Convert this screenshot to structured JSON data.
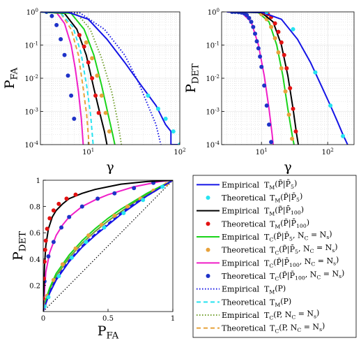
{
  "colors": {
    "tm_p5": "#1414e6",
    "tm_p5_theo": "#26e3f0",
    "tm_p100": "#000000",
    "tm_p100_theo": "#e31212",
    "tc_p5": "#19d419",
    "tc_p5_theo": "#e8a23a",
    "tc_p100": "#f01ec8",
    "tc_p100_theo": "#1e32c8",
    "tm_p": "#1414e6",
    "tm_p_theo": "#26e3f0",
    "tc_p": "#6f9e2a",
    "tc_p_theo": "#e8a23a",
    "diag": "#000000"
  },
  "legend": [
    {
      "method": "Empirical",
      "stat": "T_M(P~|P̄5)",
      "style": "solid",
      "color": "tm_p5"
    },
    {
      "method": "Theoretical",
      "stat": "T_M(P~|P̄5)",
      "style": "dot",
      "color": "tm_p5_theo"
    },
    {
      "method": "Empirical",
      "stat": "T_M(P~|P̄100)",
      "style": "solid",
      "color": "tm_p100"
    },
    {
      "method": "Theoretical",
      "stat": "T_M(P~|P̄100)",
      "style": "dot",
      "color": "tm_p100_theo"
    },
    {
      "method": "Empirical",
      "stat": "T_C(P~|P̄5, N_C = N_s)",
      "style": "solid",
      "color": "tc_p5"
    },
    {
      "method": "Theoretical",
      "stat": "T_C(P~|P̄5, N_C = N_s)",
      "style": "dot",
      "color": "tc_p5_theo"
    },
    {
      "method": "Empirical",
      "stat": "T_C(P~|P̄100, N_C = N_s)",
      "style": "solid",
      "color": "tc_p100"
    },
    {
      "method": "Theoretical",
      "stat": "T_C(P~|P̄100, N_C = N_s)",
      "style": "dot",
      "color": "tc_p100_theo"
    },
    {
      "method": "Empirical",
      "stat": "T_M(P)",
      "style": "dotted",
      "color": "tm_p"
    },
    {
      "method": "Theoretical",
      "stat": "T_M(P)",
      "style": "dashed",
      "color": "tm_p_theo"
    },
    {
      "method": "Empirical",
      "stat": "T_C(P, N_C = N_s)",
      "style": "dotted",
      "color": "tc_p"
    },
    {
      "method": "Theoretical",
      "stat": "T_C(P, N_C = N_s)",
      "style": "dashed",
      "color": "tc_p_theo"
    }
  ],
  "chart_data": [
    {
      "type": "line",
      "ylabel": "P_FA",
      "xlabel": "γ",
      "xscale": "log",
      "yscale": "log",
      "xlim": [
        3,
        100
      ],
      "ylim": [
        0.0001,
        1
      ],
      "xticks": [
        "10^1",
        "10^2"
      ],
      "yticks": [
        "10^-4",
        "10^-3",
        "10^-2",
        "10^-1",
        "10^0"
      ],
      "grid": true,
      "series": [
        {
          "id": "tc_p100",
          "style": "solid",
          "x": [
            3,
            4.5,
            5.5,
            6.5,
            7.2,
            7.8,
            8.4,
            8.8
          ],
          "y": [
            1,
            0.95,
            0.45,
            0.1,
            0.02,
            0.004,
            0.0006,
            0.0001
          ]
        },
        {
          "id": "tc_p100_theo",
          "style": "dot",
          "x": [
            3.5,
            4,
            4.5,
            5,
            5.5,
            6,
            6.5,
            7
          ],
          "y": [
            1,
            0.75,
            0.4,
            0.15,
            0.05,
            0.012,
            0.003,
            0.0006
          ]
        },
        {
          "id": "tc_p_theo",
          "style": "dashed",
          "x": [
            3,
            5,
            6.5,
            7.8,
            8.8,
            9.6,
            10.2
          ],
          "y": [
            1,
            0.9,
            0.3,
            0.05,
            0.005,
            0.0008,
            0.0001
          ]
        },
        {
          "id": "tm_p_theo",
          "style": "dashed",
          "x": [
            3,
            5,
            6.8,
            8.3,
            9.6,
            10.6,
            11.3
          ],
          "y": [
            1,
            0.92,
            0.35,
            0.06,
            0.006,
            0.0008,
            0.0001
          ]
        },
        {
          "id": "tm_p100",
          "style": "solid",
          "x": [
            3,
            5.5,
            7.5,
            9.5,
            11.5,
            13.5,
            15,
            16
          ],
          "y": [
            1,
            0.9,
            0.3,
            0.05,
            0.005,
            0.0008,
            0.00025,
            0.0001
          ]
        },
        {
          "id": "tm_p100_theo",
          "style": "dot",
          "x": [
            8,
            9,
            10,
            11,
            12,
            13
          ],
          "y": [
            0.2,
            0.09,
            0.03,
            0.01,
            0.003,
            0.0009
          ]
        },
        {
          "id": "tc_p5",
          "style": "solid",
          "x": [
            3,
            6.5,
            9,
            11.5,
            14,
            16.5,
            18.5,
            19.5
          ],
          "y": [
            1,
            0.9,
            0.3,
            0.05,
            0.006,
            0.0008,
            0.0002,
            0.0001
          ]
        },
        {
          "id": "tc_p5_theo",
          "style": "dot",
          "x": [
            9.5,
            11,
            12.5,
            14,
            15.5,
            17
          ],
          "y": [
            0.12,
            0.04,
            0.012,
            0.003,
            0.0009,
            0.00025
          ]
        },
        {
          "id": "tc_p",
          "style": "dotted",
          "x": [
            4,
            7.5,
            10.5,
            14,
            18,
            21,
            23
          ],
          "y": [
            1,
            0.9,
            0.3,
            0.04,
            0.004,
            0.0005,
            0.0001
          ]
        },
        {
          "id": "tm_p",
          "style": "dotted",
          "x": [
            3,
            8,
            15,
            25,
            35,
            45,
            55,
            62
          ],
          "y": [
            1,
            0.95,
            0.3,
            0.05,
            0.008,
            0.0015,
            0.0004,
            0.0001
          ]
        },
        {
          "id": "tm_p5",
          "style": "solid",
          "x": [
            3,
            6,
            10,
            16,
            25,
            38,
            55,
            70,
            80,
            80,
            100
          ],
          "y": [
            1,
            0.98,
            0.6,
            0.15,
            0.03,
            0.006,
            0.0015,
            0.0004,
            0.00025,
            0.0001,
            0.0001
          ]
        },
        {
          "id": "tm_p5_theo",
          "style": "dot",
          "x": [
            45,
            58,
            70,
            85,
            100
          ],
          "y": [
            0.003,
            0.0012,
            0.0006,
            0.00025,
            0.0001
          ]
        }
      ]
    },
    {
      "type": "line",
      "ylabel": "P_DET",
      "xlabel": "γ",
      "xscale": "log",
      "yscale": "log",
      "xlim": [
        2.5,
        250
      ],
      "ylim": [
        0.0001,
        1
      ],
      "xticks": [
        "10^1",
        "10^2"
      ],
      "yticks": [
        "10^-4",
        "10^-3",
        "10^-2",
        "10^-1",
        "10^0"
      ],
      "grid": true,
      "series": [
        {
          "id": "tc_p100",
          "style": "solid",
          "x": [
            3,
            5,
            7,
            9,
            11,
            13,
            14.5,
            15
          ],
          "y": [
            1,
            0.95,
            0.5,
            0.1,
            0.012,
            0.0012,
            0.0002,
            0.0001
          ]
        },
        {
          "id": "tc_p100_theo",
          "style": "dot",
          "x": [
            3.6,
            4,
            4.5,
            5,
            5.5,
            6,
            6.5,
            7,
            7.5,
            8,
            8.5,
            9,
            9.5,
            10,
            11,
            12,
            13,
            14
          ],
          "y": [
            1,
            1,
            0.98,
            0.95,
            0.9,
            0.8,
            0.65,
            0.5,
            0.35,
            0.22,
            0.13,
            0.08,
            0.045,
            0.022,
            0.006,
            0.0015,
            0.0004,
            0.00012
          ]
        },
        {
          "id": "tc_p5",
          "style": "solid",
          "x": [
            3,
            9,
            13,
            17,
            21,
            25,
            29,
            31
          ],
          "y": [
            1,
            0.95,
            0.5,
            0.1,
            0.012,
            0.0012,
            0.0002,
            0.0001
          ]
        },
        {
          "id": "tc_p5_theo",
          "style": "dot",
          "x": [
            10,
            12,
            14,
            16,
            18,
            20,
            23,
            26,
            29
          ],
          "y": [
            0.85,
            0.6,
            0.35,
            0.16,
            0.06,
            0.02,
            0.004,
            0.0008,
            0.00015
          ]
        },
        {
          "id": "tm_p100",
          "style": "solid",
          "x": [
            3,
            10,
            15,
            20,
            25,
            30,
            34,
            36
          ],
          "y": [
            1,
            0.95,
            0.5,
            0.1,
            0.012,
            0.0012,
            0.0002,
            0.0001
          ]
        },
        {
          "id": "tm_p100_theo",
          "style": "dot",
          "x": [
            11,
            12.5,
            14,
            16,
            18,
            20,
            22,
            24,
            27,
            30,
            33
          ],
          "y": [
            0.95,
            0.85,
            0.7,
            0.45,
            0.25,
            0.12,
            0.05,
            0.02,
            0.005,
            0.0012,
            0.00025
          ]
        },
        {
          "id": "tm_p5",
          "style": "solid",
          "x": [
            3,
            10,
            20,
            35,
            55,
            80,
            110,
            140,
            170,
            200
          ],
          "y": [
            1,
            0.98,
            0.6,
            0.15,
            0.03,
            0.006,
            0.0015,
            0.0005,
            0.0002,
            0.0001
          ]
        },
        {
          "id": "tm_p5_theo",
          "style": "dot",
          "x": [
            12,
            30,
            65,
            110,
            170
          ],
          "y": [
            1,
            0.3,
            0.015,
            0.0015,
            0.00018
          ]
        }
      ]
    },
    {
      "type": "line",
      "ylabel": "P_DET",
      "xlabel": "P_FA",
      "xlim": [
        0,
        1
      ],
      "ylim": [
        0,
        1
      ],
      "xticks": [
        "0",
        "0.5",
        "1"
      ],
      "yticks": [
        "0.2",
        "0.4",
        "0.6",
        "0.8",
        "1"
      ],
      "grid": false,
      "series": [
        {
          "id": "diag",
          "style": "dotted",
          "x": [
            0,
            1
          ],
          "y": [
            0,
            1
          ]
        },
        {
          "id": "tc_p",
          "style": "solid",
          "x": [
            0,
            0.02,
            0.05,
            0.1,
            0.2,
            0.3,
            0.4,
            0.5,
            0.6,
            0.7,
            0.8,
            0.9,
            1
          ],
          "y": [
            0,
            0.08,
            0.17,
            0.27,
            0.41,
            0.52,
            0.61,
            0.69,
            0.76,
            0.83,
            0.89,
            0.95,
            1
          ]
        },
        {
          "id": "tm_p",
          "style": "dashed",
          "x": [
            0,
            0.02,
            0.05,
            0.1,
            0.2,
            0.3,
            0.4,
            0.5,
            0.6,
            0.7,
            0.8,
            0.9,
            1
          ],
          "y": [
            0,
            0.07,
            0.15,
            0.25,
            0.39,
            0.5,
            0.59,
            0.67,
            0.75,
            0.82,
            0.88,
            0.94,
            1
          ]
        },
        {
          "id": "tc_p5",
          "style": "solid",
          "x": [
            0,
            0.02,
            0.05,
            0.1,
            0.2,
            0.3,
            0.4,
            0.5,
            0.6,
            0.7,
            0.8,
            0.9,
            1
          ],
          "y": [
            0,
            0.09,
            0.18,
            0.29,
            0.43,
            0.54,
            0.63,
            0.71,
            0.78,
            0.84,
            0.9,
            0.95,
            1
          ]
        },
        {
          "id": "tc_p5_theo",
          "style": "dot",
          "x": [
            0.01,
            0.03,
            0.08,
            0.15,
            0.25,
            0.35,
            0.45,
            0.55,
            0.65,
            0.75,
            0.85,
            0.95
          ],
          "y": [
            0.05,
            0.12,
            0.24,
            0.36,
            0.48,
            0.58,
            0.66,
            0.73,
            0.8,
            0.86,
            0.92,
            0.97
          ]
        },
        {
          "id": "tm_p5",
          "style": "solid",
          "x": [
            0,
            0.02,
            0.05,
            0.1,
            0.2,
            0.3,
            0.4,
            0.5,
            0.6,
            0.7,
            0.8,
            0.9,
            1
          ],
          "y": [
            0,
            0.06,
            0.14,
            0.24,
            0.38,
            0.49,
            0.58,
            0.66,
            0.74,
            0.81,
            0.88,
            0.94,
            1
          ]
        },
        {
          "id": "tm_p5_theo",
          "style": "dot",
          "x": [
            0.01,
            0.04,
            0.12,
            0.22,
            0.33,
            0.47,
            0.62,
            0.77,
            0.92
          ],
          "y": [
            0.04,
            0.11,
            0.27,
            0.41,
            0.53,
            0.64,
            0.75,
            0.85,
            0.95
          ]
        },
        {
          "id": "tc_p100",
          "style": "solid",
          "x": [
            0,
            0.02,
            0.05,
            0.1,
            0.15,
            0.2,
            0.3,
            0.4,
            0.5,
            0.6,
            0.7,
            0.8,
            0.9,
            1
          ],
          "y": [
            0,
            0.3,
            0.45,
            0.58,
            0.66,
            0.72,
            0.8,
            0.85,
            0.89,
            0.92,
            0.95,
            0.97,
            0.99,
            1
          ]
        },
        {
          "id": "tc_p100_theo",
          "style": "dot",
          "x": [
            0.01,
            0.04,
            0.08,
            0.14,
            0.2,
            0.3,
            0.42,
            0.55,
            0.7,
            0.85
          ],
          "y": [
            0.23,
            0.42,
            0.53,
            0.64,
            0.72,
            0.8,
            0.86,
            0.9,
            0.94,
            0.98
          ]
        },
        {
          "id": "tm_p100",
          "style": "solid",
          "x": [
            0,
            0.01,
            0.02,
            0.04,
            0.07,
            0.1,
            0.15,
            0.2,
            0.3,
            0.4,
            0.5,
            0.6,
            0.7,
            0.8,
            0.9,
            1
          ],
          "y": [
            0,
            0.35,
            0.5,
            0.63,
            0.72,
            0.77,
            0.82,
            0.86,
            0.9,
            0.93,
            0.95,
            0.97,
            0.98,
            0.99,
            0.995,
            1
          ]
        },
        {
          "id": "tm_p100_theo",
          "style": "dot",
          "x": [
            0,
            0.005,
            0.01,
            0.015,
            0.02,
            0.03,
            0.05,
            0.08,
            0.12,
            0.18,
            0.25
          ],
          "y": [
            0.1,
            0.25,
            0.38,
            0.47,
            0.54,
            0.63,
            0.71,
            0.77,
            0.82,
            0.86,
            0.89
          ]
        }
      ]
    }
  ]
}
